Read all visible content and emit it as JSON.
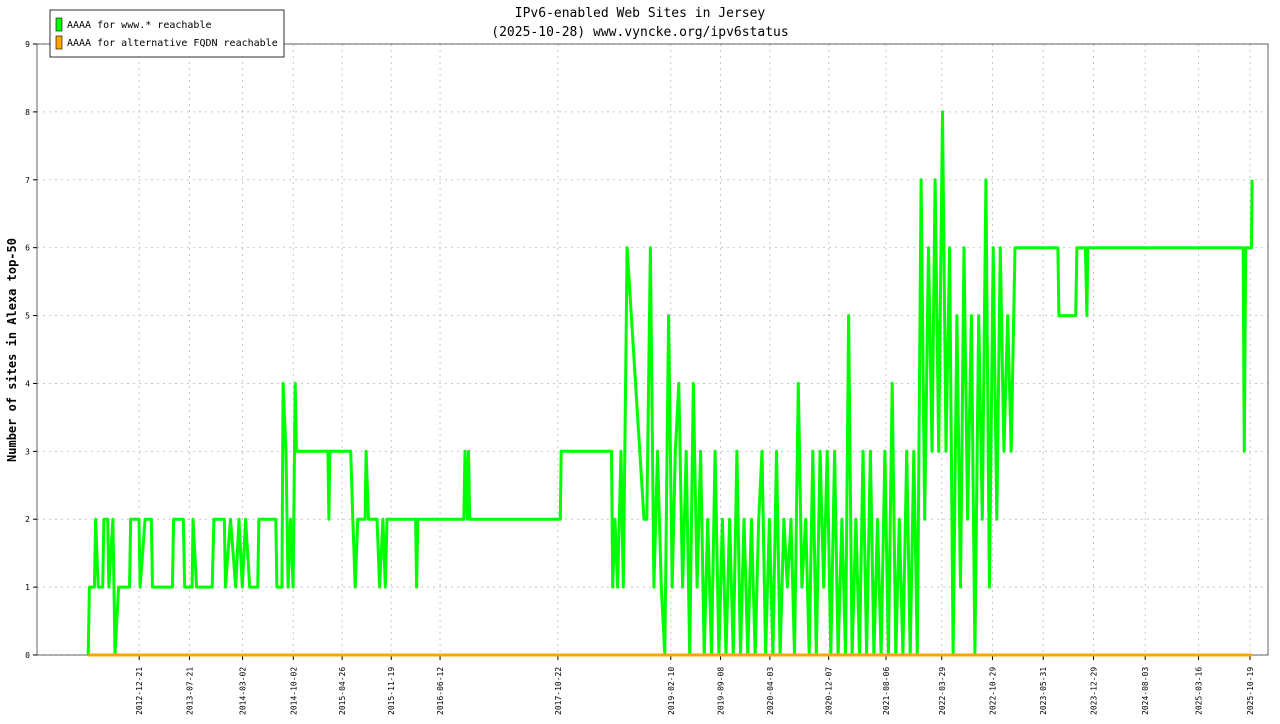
{
  "chart_data": {
    "type": "line",
    "title": "IPv6-enabled Web Sites in Jersey",
    "subtitle": "(2025-10-28) www.vyncke.org/ipv6status",
    "ylabel": "Number of sites in Alexa top-50",
    "xlim": [
      "2011-10-17",
      "2026-01-03"
    ],
    "ylim": [
      0,
      9
    ],
    "yticks": [
      0,
      1,
      2,
      3,
      4,
      5,
      6,
      7,
      8,
      9
    ],
    "xticks": [
      "2012-12-21",
      "2013-07-21",
      "2014-03-02",
      "2014-10-02",
      "2015-04-26",
      "2015-11-19",
      "2016-06-12",
      "2017-10-22",
      "2019-02-10",
      "2019-09-08",
      "2020-04-03",
      "2020-12-07",
      "2021-08-06",
      "2022-03-29",
      "2022-10-29",
      "2023-05-31",
      "2023-12-29",
      "2024-08-03",
      "2025-03-16",
      "2025-10-19"
    ],
    "grid": true,
    "legend": "top-left",
    "series": [
      {
        "name": "AAAA for www.* reachable",
        "color": "#00ff00",
        "x": [
          "2012-05-20",
          "2012-05-25",
          "2012-06-15",
          "2012-06-20",
          "2012-07-01",
          "2012-07-20",
          "2012-07-25",
          "2012-08-10",
          "2012-08-15",
          "2012-09-01",
          "2012-09-10",
          "2012-09-25",
          "2012-11-10",
          "2012-11-15",
          "2012-12-20",
          "2012-12-25",
          "2013-01-15",
          "2013-02-10",
          "2013-02-15",
          "2013-05-10",
          "2013-05-15",
          "2013-06-25",
          "2013-07-01",
          "2013-08-01",
          "2013-08-05",
          "2013-08-20",
          "2013-10-25",
          "2013-11-01",
          "2013-12-15",
          "2013-12-20",
          "2014-01-10",
          "2014-02-01",
          "2014-02-15",
          "2014-03-01",
          "2014-03-15",
          "2014-04-01",
          "2014-05-05",
          "2014-05-10",
          "2014-07-20",
          "2014-07-25",
          "2014-08-15",
          "2014-08-20",
          "2014-09-01",
          "2014-09-10",
          "2014-09-20",
          "2014-10-01",
          "2014-10-10",
          "2014-10-15",
          "2015-02-25",
          "2015-03-01",
          "2015-03-05",
          "2015-06-01",
          "2015-06-10",
          "2015-06-20",
          "2015-07-01",
          "2015-08-01",
          "2015-08-05",
          "2015-08-15",
          "2015-09-20",
          "2015-10-01",
          "2015-10-15",
          "2015-10-25",
          "2015-11-01",
          "2016-03-01",
          "2016-03-05",
          "2016-03-10",
          "2016-09-20",
          "2016-09-25",
          "2016-10-05",
          "2016-10-10",
          "2016-10-15",
          "2017-11-01",
          "2017-11-05",
          "2018-06-05",
          "2018-06-10",
          "2018-06-20",
          "2018-07-01",
          "2018-07-15",
          "2018-07-25",
          "2018-08-10",
          "2018-10-20",
          "2018-11-01",
          "2018-11-16",
          "2018-12-01",
          "2018-12-16",
          "2019-01-01",
          "2019-01-16",
          "2019-02-01",
          "2019-02-16",
          "2019-03-01",
          "2019-03-16",
          "2019-04-01",
          "2019-04-16",
          "2019-05-01",
          "2019-05-16",
          "2019-06-01",
          "2019-06-16",
          "2019-07-01",
          "2019-07-16",
          "2019-08-01",
          "2019-08-16",
          "2019-09-01",
          "2019-09-16",
          "2019-10-01",
          "2019-10-16",
          "2019-11-01",
          "2019-11-16",
          "2019-12-01",
          "2019-12-16",
          "2020-01-01",
          "2020-01-16",
          "2020-02-01",
          "2020-02-16",
          "2020-03-01",
          "2020-03-16",
          "2020-04-01",
          "2020-04-16",
          "2020-05-01",
          "2020-05-16",
          "2020-06-01",
          "2020-06-16",
          "2020-07-01",
          "2020-07-16",
          "2020-08-01",
          "2020-08-16",
          "2020-09-01",
          "2020-09-16",
          "2020-10-01",
          "2020-10-16",
          "2020-11-01",
          "2020-11-16",
          "2020-12-01",
          "2020-12-16",
          "2021-01-01",
          "2021-01-16",
          "2021-02-01",
          "2021-02-16",
          "2021-03-01",
          "2021-03-16",
          "2021-04-01",
          "2021-04-16",
          "2021-05-01",
          "2021-05-16",
          "2021-06-01",
          "2021-06-16",
          "2021-07-01",
          "2021-07-16",
          "2021-08-01",
          "2021-08-16",
          "2021-09-01",
          "2021-09-16",
          "2021-10-01",
          "2021-10-16",
          "2021-11-01",
          "2021-11-16",
          "2021-12-01",
          "2021-12-16",
          "2022-01-01",
          "2022-01-16",
          "2022-02-01",
          "2022-02-16",
          "2022-03-01",
          "2022-03-16",
          "2022-04-01",
          "2022-04-16",
          "2022-05-01",
          "2022-05-16",
          "2022-06-01",
          "2022-06-16",
          "2022-07-01",
          "2022-07-16",
          "2022-08-01",
          "2022-08-16",
          "2022-09-01",
          "2022-09-16",
          "2022-10-01",
          "2022-10-16",
          "2022-11-01",
          "2022-11-16",
          "2022-12-01",
          "2022-12-16",
          "2023-01-01",
          "2023-01-16",
          "2023-02-01",
          "2023-08-01",
          "2023-08-05",
          "2023-10-15",
          "2023-10-20",
          "2023-11-25",
          "2023-12-01",
          "2023-12-05",
          "2025-09-20",
          "2025-09-25",
          "2025-10-01",
          "2025-10-25",
          "2025-10-28"
        ],
        "values": [
          0,
          1,
          1,
          2,
          1,
          1,
          2,
          2,
          1,
          2,
          0,
          1,
          1,
          2,
          2,
          1,
          2,
          2,
          1,
          1,
          2,
          2,
          1,
          1,
          2,
          1,
          1,
          2,
          2,
          1,
          2,
          1,
          2,
          1,
          2,
          1,
          1,
          2,
          2,
          1,
          1,
          4,
          3,
          1,
          2,
          1,
          4,
          3,
          3,
          2,
          3,
          3,
          2,
          1,
          2,
          2,
          3,
          2,
          2,
          1,
          2,
          1,
          2,
          2,
          1,
          2,
          2,
          3,
          2,
          3,
          2,
          2,
          3,
          3,
          1,
          2,
          1,
          3,
          1,
          6,
          2,
          2,
          6,
          1,
          3,
          1,
          0,
          5,
          1,
          3,
          4,
          1,
          3,
          0,
          4,
          1,
          3,
          0,
          2,
          0,
          3,
          0,
          2,
          0,
          2,
          0,
          3,
          0,
          2,
          0,
          2,
          0,
          2,
          3,
          0,
          2,
          0,
          3,
          0,
          2,
          1,
          2,
          0,
          4,
          1,
          2,
          0,
          3,
          0,
          3,
          1,
          3,
          0,
          3,
          0,
          2,
          0,
          5,
          0,
          2,
          0,
          3,
          0,
          3,
          0,
          2,
          0,
          3,
          0,
          4,
          0,
          2,
          0,
          3,
          0,
          3,
          0,
          7,
          2,
          6,
          3,
          7,
          3,
          8,
          3,
          6,
          0,
          5,
          1,
          6,
          2,
          5,
          0,
          5,
          2,
          7,
          1,
          6,
          2,
          6,
          3,
          5,
          3,
          6,
          6,
          5,
          5,
          6,
          6,
          5,
          6,
          6,
          3,
          6,
          6,
          7
        ]
      },
      {
        "name": "AAAA for alternative FQDN reachable",
        "color": "#ffa500",
        "x": [
          "2012-05-20",
          "2025-10-28"
        ],
        "values": [
          0,
          0
        ]
      }
    ]
  }
}
